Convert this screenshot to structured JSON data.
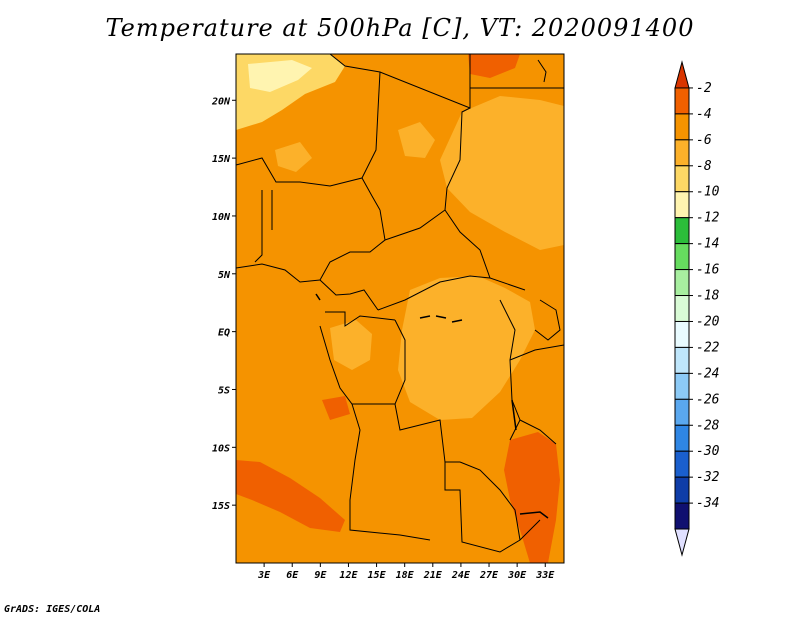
{
  "title": "Temperature at 500hPa [C], VT: 2020091400",
  "credit": "GrADS: IGES/COLA",
  "map": {
    "lon_range": [
      0,
      35
    ],
    "lat_range": [
      -20,
      24
    ],
    "lon_ticks": [
      "3E",
      "6E",
      "9E",
      "12E",
      "15E",
      "18E",
      "21E",
      "24E",
      "27E",
      "30E",
      "33E"
    ],
    "lat_ticks": [
      "20N",
      "15N",
      "10N",
      "5N",
      "EQ",
      "5S",
      "10S",
      "15S"
    ]
  },
  "colorbar": {
    "levels": [
      "-2",
      "-4",
      "-6",
      "-8",
      "-10",
      "-12",
      "-14",
      "-16",
      "-18",
      "-20",
      "-22",
      "-24",
      "-26",
      "-28",
      "-30",
      "-32",
      "-34"
    ],
    "colors": [
      "#d93500",
      "#f06000",
      "#f59300",
      "#fcb12a",
      "#fdd865",
      "#fff4b0",
      "#2bbd3a",
      "#66dc5f",
      "#a8efa0",
      "#d9fbd6",
      "#e9fbff",
      "#bfe6fb",
      "#8ccaf6",
      "#5aa8ef",
      "#2f86e4",
      "#1a5fcd",
      "#0f3da8",
      "#101070",
      "#e0e0ff"
    ]
  }
}
